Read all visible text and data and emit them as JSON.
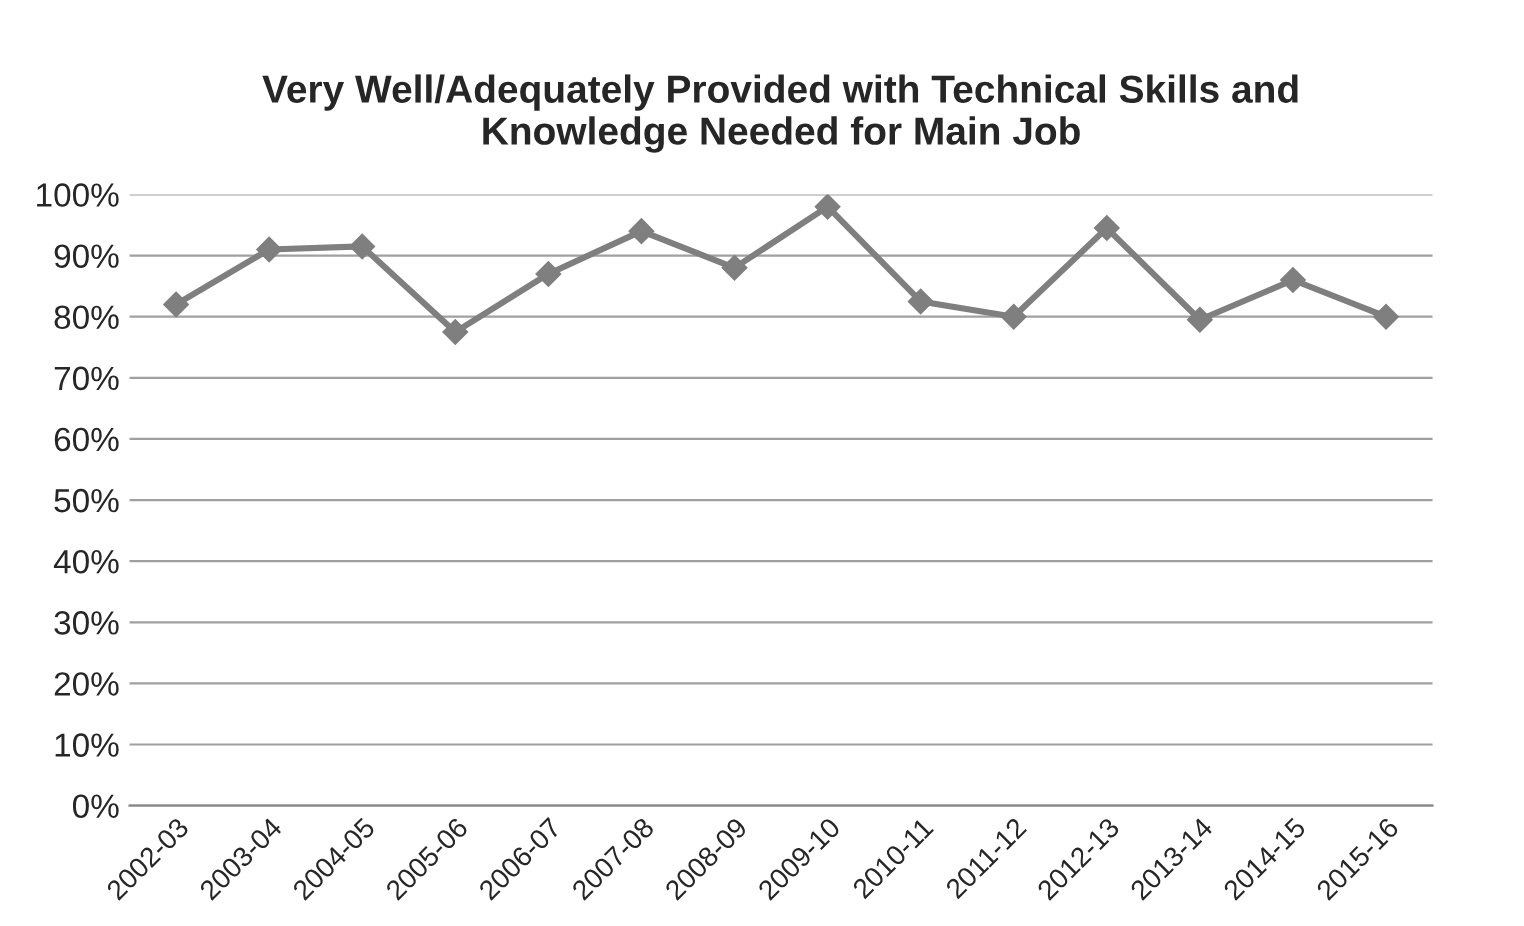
{
  "chart_data": {
    "type": "line",
    "title": "Very Well/Adequately Provided with Technical Skills and\nKnowledge Needed for Main Job",
    "categories": [
      "2002-03",
      "2003-04",
      "2004-05",
      "2005-06",
      "2006-07",
      "2007-08",
      "2008-09",
      "2009-10",
      "2010-11",
      "2011-12",
      "2012-13",
      "2013-14",
      "2014-15",
      "2015-16"
    ],
    "series": [
      {
        "color": "#7f7f7f",
        "values": [
          82,
          91,
          91.5,
          77.5,
          87,
          94,
          88,
          98,
          82.5,
          80,
          94.5,
          79.5,
          86,
          80
        ]
      }
    ],
    "ylim": [
      0,
      100
    ],
    "yticks": [
      {
        "value": 0,
        "label": "0%"
      },
      {
        "value": 10,
        "label": "10%"
      },
      {
        "value": 20,
        "label": "20%"
      },
      {
        "value": 30,
        "label": "30%"
      },
      {
        "value": 40,
        "label": "40%"
      },
      {
        "value": 50,
        "label": "50%"
      },
      {
        "value": 60,
        "label": "60%"
      },
      {
        "value": 70,
        "label": "70%"
      },
      {
        "value": 80,
        "label": "80%"
      },
      {
        "value": 90,
        "label": "90%"
      },
      {
        "value": 100,
        "label": "100%"
      }
    ],
    "grid": "y",
    "marker": "diamond",
    "line_style": "solid",
    "legend": false
  }
}
